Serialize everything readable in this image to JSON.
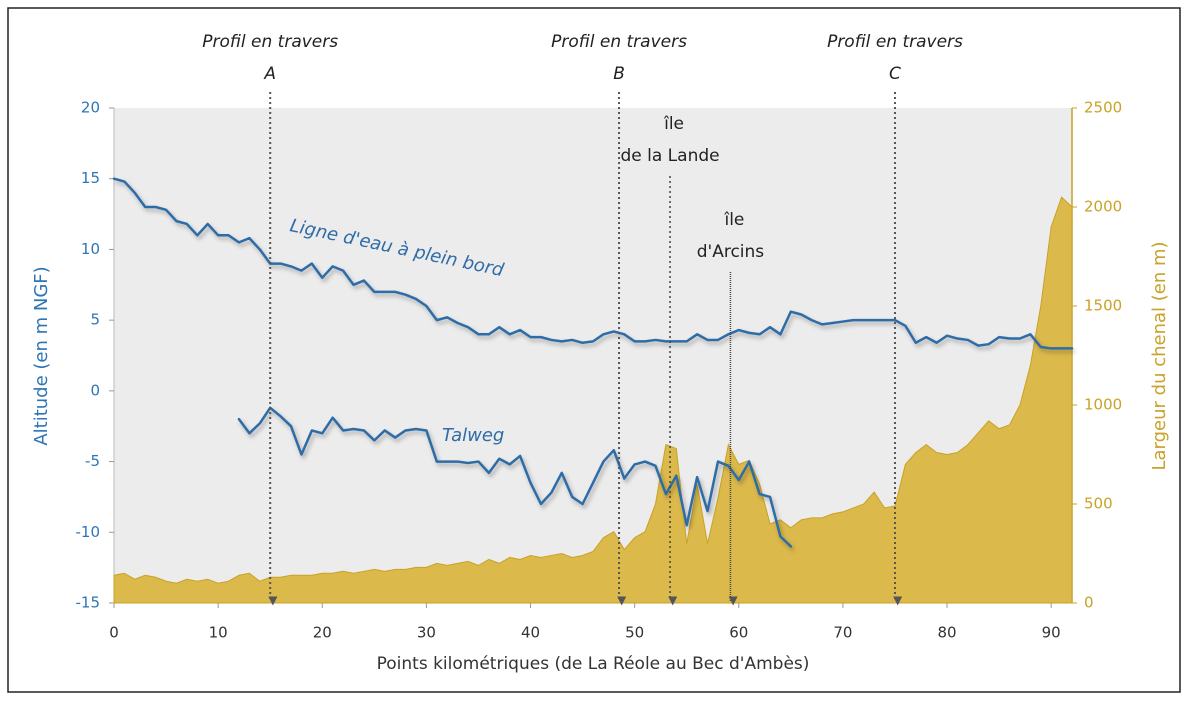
{
  "chart_data": {
    "type": "line",
    "xlabel": "Points kilométriques (de La Réole au Bec d'Ambès)",
    "ylabel": "Altitude (en m NGF)",
    "y2label": "Largeur du chenal (en m)",
    "xlim": [
      0,
      92
    ],
    "xticks": [
      0,
      10,
      20,
      30,
      40,
      50,
      60,
      70,
      80,
      90
    ],
    "ylim": [
      -15,
      20
    ],
    "yticks": [
      -15,
      -10,
      -5,
      0,
      5,
      10,
      15,
      20
    ],
    "y2lim": [
      0,
      2500
    ],
    "y2ticks": [
      0,
      500,
      1000,
      1500,
      2000,
      2500
    ],
    "x": [
      0,
      1,
      2,
      3,
      4,
      5,
      6,
      7,
      8,
      9,
      10,
      11,
      12,
      13,
      14,
      15,
      16,
      17,
      18,
      19,
      20,
      21,
      22,
      23,
      24,
      25,
      26,
      27,
      28,
      29,
      30,
      31,
      32,
      33,
      34,
      35,
      36,
      37,
      38,
      39,
      40,
      41,
      42,
      43,
      44,
      45,
      46,
      47,
      48,
      49,
      50,
      51,
      52,
      53,
      54,
      55,
      56,
      57,
      58,
      59,
      60,
      61,
      62,
      63,
      64,
      65,
      66,
      67,
      68,
      69,
      70,
      71,
      72,
      73,
      74,
      75,
      76,
      77,
      78,
      79,
      80,
      81,
      82,
      83,
      84,
      85,
      86,
      87,
      88,
      89,
      90,
      91,
      92
    ],
    "series": [
      {
        "name": "Ligne d'eau à plein bord",
        "color": "#2f6ca8",
        "values": [
          15,
          14.8,
          14,
          13,
          13,
          12.8,
          12,
          11.8,
          11,
          11.8,
          11,
          11,
          10.5,
          10.8,
          10,
          9,
          9,
          8.8,
          8.5,
          9,
          8,
          8.8,
          8.5,
          7.5,
          7.8,
          7,
          7,
          7,
          6.8,
          6.5,
          6,
          5,
          5.2,
          4.8,
          4.5,
          4,
          4,
          4.5,
          4,
          4.3,
          3.8,
          3.8,
          3.6,
          3.5,
          3.6,
          3.4,
          3.5,
          4,
          4.2,
          4,
          3.5,
          3.5,
          3.6,
          3.5,
          3.5,
          3.5,
          4,
          3.6,
          3.6,
          4,
          4.3,
          4.1,
          4,
          4.5,
          4,
          5.6,
          5.4,
          5,
          4.7,
          4.8,
          4.9,
          5,
          5,
          5,
          5,
          5,
          4.6,
          3.4,
          3.8,
          3.4,
          3.9,
          3.7,
          3.6,
          3.2,
          3.3,
          3.8,
          3.7,
          3.7,
          4,
          3.1,
          3,
          3,
          3
        ]
      },
      {
        "name": "Talweg",
        "color": "#2f6ca8",
        "values": [
          null,
          null,
          null,
          null,
          null,
          null,
          null,
          null,
          null,
          null,
          null,
          null,
          -2,
          -3,
          -2.3,
          -1.2,
          -1.8,
          -2.5,
          -4.5,
          -2.8,
          -3,
          -1.9,
          -2.8,
          -2.7,
          -2.8,
          -3.5,
          -2.8,
          -3.3,
          -2.8,
          -2.7,
          -2.8,
          -5,
          -5,
          -5,
          -5.1,
          -5,
          -5.8,
          -4.8,
          -5.2,
          -4.6,
          -6.5,
          -8,
          -7.2,
          -5.8,
          -7.5,
          -8,
          -6.5,
          -5,
          -4.2,
          -6.2,
          -5.2,
          -5,
          -5.3,
          -7.3,
          -6,
          -9.5,
          -6.1,
          -8.5,
          -5,
          -5.3,
          -6.3,
          -5,
          -7.3,
          -7.5,
          -10.3,
          -11,
          null,
          null,
          null,
          null,
          null,
          null,
          null,
          null,
          null,
          null,
          null,
          null,
          null,
          null,
          null,
          null,
          null,
          null,
          null,
          null,
          null,
          null,
          null,
          null,
          null,
          null,
          null
        ]
      },
      {
        "type": "area",
        "axis": "y2",
        "color": "#d9b43a",
        "values": [
          140,
          150,
          120,
          140,
          130,
          110,
          100,
          120,
          110,
          120,
          100,
          110,
          140,
          150,
          110,
          130,
          130,
          140,
          140,
          140,
          150,
          150,
          160,
          150,
          160,
          170,
          160,
          170,
          170,
          180,
          180,
          200,
          190,
          200,
          210,
          190,
          220,
          200,
          230,
          220,
          240,
          230,
          240,
          250,
          230,
          240,
          260,
          330,
          360,
          270,
          330,
          360,
          500,
          800,
          780,
          300,
          600,
          300,
          530,
          800,
          700,
          720,
          600,
          400,
          420,
          380,
          420,
          430,
          430,
          450,
          460,
          480,
          500,
          560,
          480,
          490,
          700,
          760,
          800,
          760,
          750,
          760,
          800,
          860,
          920,
          880,
          900,
          1000,
          1200,
          1500,
          1900,
          2050,
          2000
        ]
      }
    ],
    "annotations": [
      {
        "text": "Profil en travers",
        "letter": "A",
        "x": 15
      },
      {
        "text": "Profil en travers",
        "letter": "B",
        "x": 48.5
      },
      {
        "text": "Profil en travers",
        "letter": "C",
        "x": 75
      },
      {
        "lines": [
          "île",
          "de la Lande"
        ],
        "x": 53.4
      },
      {
        "lines": [
          "île",
          "d'Arcins"
        ],
        "x": 59.2
      }
    ]
  }
}
